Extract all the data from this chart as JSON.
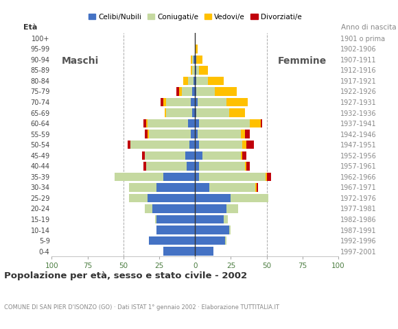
{
  "age_groups": [
    "0-4",
    "5-9",
    "10-14",
    "15-19",
    "20-24",
    "25-29",
    "30-34",
    "35-39",
    "40-44",
    "45-49",
    "50-54",
    "55-59",
    "60-64",
    "65-69",
    "70-74",
    "75-79",
    "80-84",
    "85-89",
    "90-94",
    "95-99",
    "100+"
  ],
  "birth_years": [
    "1997-2001",
    "1992-1996",
    "1987-1991",
    "1982-1986",
    "1977-1981",
    "1972-1976",
    "1967-1971",
    "1962-1966",
    "1957-1961",
    "1952-1956",
    "1947-1951",
    "1942-1946",
    "1937-1941",
    "1932-1936",
    "1927-1931",
    "1922-1926",
    "1917-1921",
    "1912-1916",
    "1907-1911",
    "1902-1906",
    "1901 o prima"
  ],
  "male_celibe": [
    22,
    32,
    27,
    27,
    30,
    33,
    27,
    22,
    6,
    7,
    4,
    3,
    5,
    2,
    3,
    2,
    1,
    0,
    1,
    0,
    0
  ],
  "male_coniugato": [
    0,
    0,
    0,
    1,
    5,
    13,
    19,
    34,
    28,
    28,
    41,
    29,
    28,
    18,
    17,
    7,
    4,
    2,
    1,
    0,
    0
  ],
  "male_vedovo": [
    0,
    0,
    0,
    0,
    0,
    0,
    0,
    0,
    0,
    0,
    0,
    1,
    1,
    1,
    2,
    2,
    3,
    1,
    1,
    0,
    0
  ],
  "male_divorziato": [
    0,
    0,
    0,
    0,
    0,
    0,
    0,
    0,
    2,
    2,
    2,
    2,
    2,
    0,
    2,
    2,
    0,
    0,
    0,
    0,
    0
  ],
  "female_celibe": [
    13,
    21,
    24,
    20,
    22,
    25,
    10,
    3,
    3,
    5,
    3,
    2,
    3,
    1,
    2,
    1,
    1,
    1,
    1,
    0,
    0
  ],
  "female_coniugato": [
    0,
    1,
    1,
    3,
    8,
    26,
    32,
    46,
    32,
    27,
    30,
    30,
    35,
    23,
    20,
    13,
    8,
    2,
    0,
    0,
    0
  ],
  "female_vedovo": [
    0,
    0,
    0,
    0,
    0,
    0,
    1,
    1,
    1,
    1,
    3,
    3,
    8,
    11,
    15,
    15,
    11,
    6,
    4,
    2,
    0
  ],
  "female_divorziato": [
    0,
    0,
    0,
    0,
    0,
    0,
    1,
    3,
    2,
    3,
    5,
    3,
    1,
    0,
    0,
    0,
    0,
    0,
    0,
    0,
    0
  ],
  "color_celibe": "#4472c4",
  "color_coniugato": "#c5d9a0",
  "color_vedovo": "#ffc000",
  "color_divorziato": "#c0000b",
  "xlim": 100,
  "title": "Popolazione per età, sesso e stato civile - 2002",
  "subtitle": "COMUNE DI SAN PIER D'ISONZO (GO) · Dati ISTAT 1° gennaio 2002 · Elaborazione TUTTITALIA.IT",
  "ylabel_left": "Età",
  "ylabel_right": "Anno di nascita",
  "label_maschi": "Maschi",
  "label_femmine": "Femmine",
  "legend_labels": [
    "Celibi/Nubili",
    "Coniugati/e",
    "Vedovi/e",
    "Divorziati/e"
  ],
  "bg_color": "#ffffff",
  "bar_height": 0.8
}
